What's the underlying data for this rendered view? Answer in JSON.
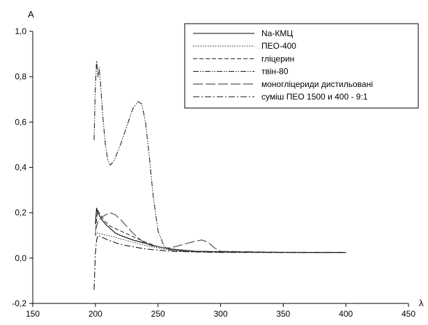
{
  "chart_data": {
    "type": "line",
    "title": "",
    "xlabel": "λ",
    "ylabel": "A",
    "xlim": [
      150,
      450
    ],
    "ylim": [
      -0.2,
      1.0
    ],
    "x_ticks": [
      150,
      200,
      250,
      300,
      350,
      400,
      450
    ],
    "y_ticks": [
      -0.2,
      0.0,
      0.2,
      0.4,
      0.6,
      0.8,
      1.0
    ],
    "x_tick_labels": [
      "150",
      "200",
      "250",
      "300",
      "350",
      "400",
      "450"
    ],
    "y_tick_labels": [
      "-0,2",
      "0,0",
      "0,2",
      "0,4",
      "0,6",
      "0,8",
      "1,0"
    ],
    "grid": false,
    "legend_position": "top-right",
    "series": [
      {
        "name": "Na-КМЦ",
        "style": "solid",
        "x": [
          200,
          201,
          202,
          203,
          205,
          208,
          212,
          216,
          220,
          230,
          240,
          250,
          260,
          270,
          280,
          300,
          330,
          360,
          400
        ],
        "y": [
          0.15,
          0.22,
          0.2,
          0.19,
          0.17,
          0.15,
          0.13,
          0.11,
          0.1,
          0.08,
          0.065,
          0.05,
          0.04,
          0.035,
          0.03,
          0.028,
          0.026,
          0.025,
          0.025
        ]
      },
      {
        "name": "ПЕО-400",
        "style": "dotted",
        "x": [
          200,
          202,
          205,
          210,
          220,
          230,
          240,
          250,
          260,
          280,
          300,
          340,
          400
        ],
        "y": [
          0.1,
          0.11,
          0.105,
          0.1,
          0.085,
          0.07,
          0.055,
          0.045,
          0.035,
          0.03,
          0.027,
          0.025,
          0.025
        ]
      },
      {
        "name": "гліцерин",
        "style": "dashed",
        "x": [
          200,
          201,
          202,
          204,
          208,
          212,
          220,
          230,
          240,
          250,
          260,
          280,
          300,
          340,
          400
        ],
        "y": [
          0.1,
          0.18,
          0.21,
          0.19,
          0.16,
          0.14,
          0.12,
          0.095,
          0.07,
          0.05,
          0.04,
          0.03,
          0.028,
          0.025,
          0.025
        ]
      },
      {
        "name": "твін-80",
        "style": "dash-dot-dot",
        "x": [
          199,
          200,
          201,
          202,
          203,
          204,
          206,
          208,
          210,
          212,
          215,
          220,
          225,
          230,
          234,
          237,
          240,
          243,
          246,
          250,
          255,
          260,
          270,
          280,
          300,
          340,
          400
        ],
        "y": [
          0.52,
          0.76,
          0.87,
          0.8,
          0.84,
          0.78,
          0.62,
          0.5,
          0.43,
          0.41,
          0.43,
          0.5,
          0.58,
          0.66,
          0.69,
          0.68,
          0.6,
          0.45,
          0.28,
          0.12,
          0.05,
          0.035,
          0.03,
          0.028,
          0.026,
          0.025,
          0.025
        ]
      },
      {
        "name": "моногліцериди дистильовані",
        "style": "long-dash",
        "x": [
          200,
          202,
          205,
          208,
          212,
          216,
          220,
          225,
          230,
          235,
          240,
          245,
          250,
          255,
          260,
          270,
          280,
          285,
          290,
          295,
          300,
          320,
          350,
          400
        ],
        "y": [
          0.12,
          0.16,
          0.18,
          0.19,
          0.2,
          0.19,
          0.17,
          0.14,
          0.11,
          0.085,
          0.065,
          0.055,
          0.05,
          0.045,
          0.045,
          0.06,
          0.075,
          0.08,
          0.07,
          0.045,
          0.03,
          0.028,
          0.026,
          0.025
        ]
      },
      {
        "name": "суміш ПЕО 1500 и 400 - 9:1",
        "style": "dash-dot",
        "x": [
          199,
          200,
          201,
          202,
          204,
          206,
          208,
          210,
          215,
          220,
          230,
          240,
          250,
          260,
          280,
          300,
          340,
          400
        ],
        "y": [
          -0.14,
          0.02,
          0.08,
          0.1,
          0.095,
          0.09,
          0.085,
          0.08,
          0.07,
          0.06,
          0.05,
          0.04,
          0.035,
          0.03,
          0.027,
          0.025,
          0.025,
          0.025
        ]
      }
    ]
  }
}
